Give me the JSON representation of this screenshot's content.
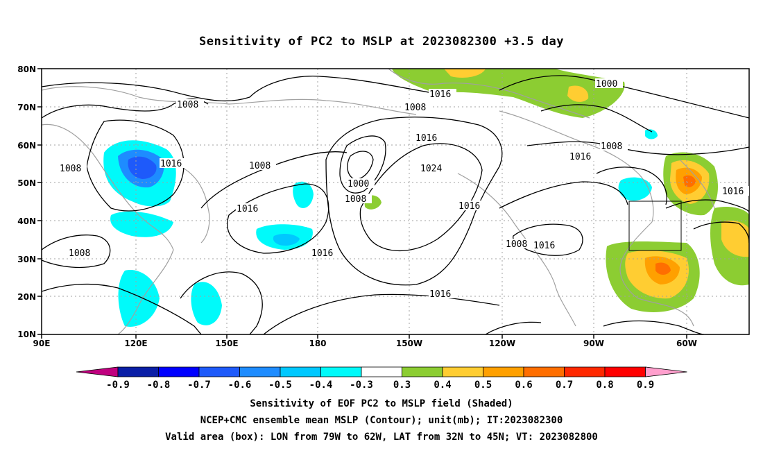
{
  "title": "Sensitivity of PC2 to MSLP at 2023082300 +3.5 day",
  "map": {
    "lat_labels": [
      "80N",
      "70N",
      "60N",
      "50N",
      "40N",
      "30N",
      "20N",
      "10N"
    ],
    "lon_labels": [
      "90E",
      "120E",
      "150E",
      "180",
      "150W",
      "120W",
      "90W",
      "60W"
    ],
    "contour_labels": [
      "1008",
      "1016",
      "1008",
      "1008",
      "1016",
      "1000",
      "1008",
      "1016",
      "1008",
      "1016",
      "1024",
      "1016",
      "1016",
      "1008",
      "1016",
      "1016",
      "1000",
      "1008",
      "1016",
      "1016",
      "1008"
    ],
    "box_label": "",
    "colors": {
      "coast": "#a0a0a0",
      "contour": "#000000",
      "box": "#000000"
    }
  },
  "colorbar": {
    "labels": [
      "-0.9",
      "-0.8",
      "-0.7",
      "-0.6",
      "-0.5",
      "-0.4",
      "-0.3",
      "0.3",
      "0.4",
      "0.5",
      "0.6",
      "0.7",
      "0.8",
      "0.9"
    ],
    "colors": [
      "#c0007f",
      "#0a1ea6",
      "#0000ff",
      "#1e5afa",
      "#1e8cff",
      "#00c8ff",
      "#00fafa",
      "#ffffff",
      "#8ccd32",
      "#ffcd32",
      "#ffa000",
      "#ff6e00",
      "#ff2800",
      "#ff0000",
      "#ff9fcd"
    ]
  },
  "footer": {
    "line1": "Sensitivity of EOF PC2 to MSLP field (Shaded)",
    "line2": "NCEP+CMC ensemble mean MSLP (Contour); unit(mb); IT:2023082300",
    "line3": "Valid area (box): LON from 79W to 62W, LAT from 32N to 45N; VT: 2023082800"
  }
}
